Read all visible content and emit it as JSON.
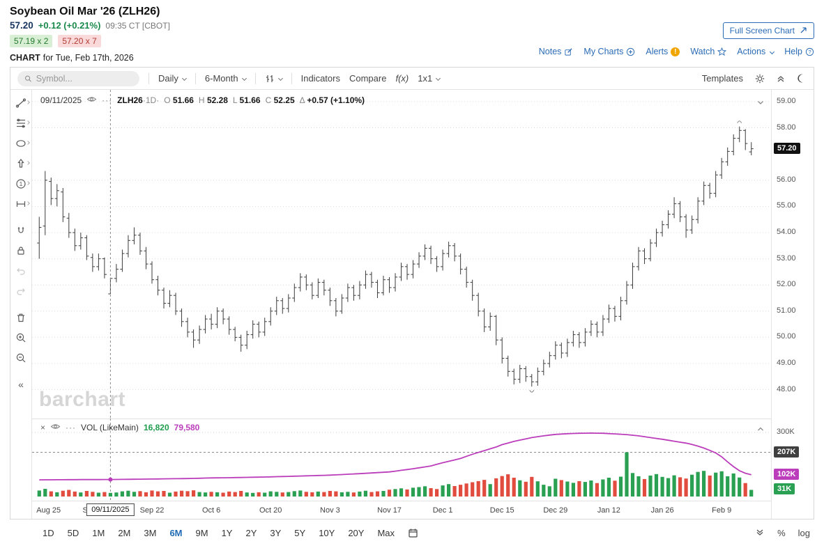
{
  "colors": {
    "accent_blue": "#1f6bb5",
    "price_navy": "#17355e",
    "gain_green": "#1a8a4c",
    "bar": "#3b3b3b",
    "vol_up": "#2aa052",
    "vol_down": "#e24c3f",
    "volume_ma": "#bb3dbb",
    "last_price_bg": "#111111",
    "cross_label_bg": "#3f3f3f",
    "alert_yellow": "#f0a500"
  },
  "header": {
    "title": "Soybean Oil Mar '26 (ZLH26)",
    "last": "57.20",
    "change": "+0.12 (+0.21%)",
    "time": "09:35 CT [CBOT]",
    "bid": "57.19 x 2",
    "ask": "57.20 x 7",
    "chart_word": "CHART",
    "chart_for": "for Tue, Feb 17th, 2026",
    "fullscreen": "Full Screen Chart",
    "links": {
      "notes": "Notes",
      "my_charts": "My Charts",
      "alerts": "Alerts",
      "watch": "Watch",
      "actions": "Actions",
      "help": "Help"
    }
  },
  "toolbar": {
    "symbol_placeholder": "Symbol...",
    "period": "Daily",
    "range": "6-Month",
    "indicators": "Indicators",
    "compare": "Compare",
    "fx": "f(x)",
    "layout": "1x1",
    "templates": "Templates"
  },
  "readout": {
    "date": "09/11/2025",
    "symbol": "ZLH26",
    "interval": "·1D·",
    "labels": {
      "o": "O",
      "h": "H",
      "l": "L",
      "c": "C",
      "delta": "Δ"
    },
    "o": "51.66",
    "h": "52.28",
    "l": "51.66",
    "c": "52.25",
    "delta": "+0.57 (+1.10%)"
  },
  "volume_readout": {
    "label": "VOL (LikeMain)",
    "value": "16,820",
    "ma_value": "79,580"
  },
  "axis_labels": {
    "last_price": "57.20",
    "vol_top": "300K",
    "vol_cross": "207K",
    "vol_ma": "102K",
    "vol_last": "31K"
  },
  "watermark": "barchart",
  "range_bar": {
    "items": [
      "1D",
      "5D",
      "1M",
      "2M",
      "3M",
      "6M",
      "9M",
      "1Y",
      "2Y",
      "3Y",
      "5Y",
      "10Y",
      "20Y",
      "Max"
    ],
    "active": "6M",
    "right": [
      "%",
      "log"
    ]
  },
  "chart_data": {
    "type": "ohlc",
    "title": "Soybean Oil Mar '26 (ZLH26) daily OHLC with volume",
    "price_range": [
      46.9,
      59.45
    ],
    "price_ticks": [
      59,
      58,
      56,
      55,
      54,
      53,
      52,
      51,
      50,
      49,
      48
    ],
    "last_price": 57.2,
    "volume_axis": {
      "tick_k": 300,
      "max_k": 320
    },
    "crosshair": {
      "index": 12,
      "date": "09/11/2025",
      "volume_k": 16.82,
      "volume_ma_k": 79.58,
      "volume_level_k": 207
    },
    "high_marker_index": 118,
    "low_marker_index": 83,
    "x_ticks": [
      {
        "index": 0,
        "label": "Aug 25"
      },
      {
        "index": 9,
        "label": "Sep 8"
      },
      {
        "index": 19,
        "label": "Sep 22"
      },
      {
        "index": 29,
        "label": "Oct 6"
      },
      {
        "index": 39,
        "label": "Oct 20"
      },
      {
        "index": 49,
        "label": "Nov 3"
      },
      {
        "index": 59,
        "label": "Nov 17"
      },
      {
        "index": 68,
        "label": "Dec 1"
      },
      {
        "index": 78,
        "label": "Dec 15"
      },
      {
        "index": 87,
        "label": "Dec 29"
      },
      {
        "index": 96,
        "label": "Jan 12"
      },
      {
        "index": 105,
        "label": "Jan 26"
      },
      {
        "index": 115,
        "label": "Feb 9"
      }
    ],
    "bars": [
      [
        53.6,
        54.6,
        53.0,
        54.2,
        28
      ],
      [
        54.25,
        56.35,
        53.9,
        56.0,
        36
      ],
      [
        55.95,
        56.1,
        55.05,
        55.3,
        24
      ],
      [
        55.3,
        55.85,
        55.0,
        55.6,
        20
      ],
      [
        55.55,
        55.7,
        54.4,
        54.6,
        27
      ],
      [
        54.55,
        54.75,
        53.8,
        54.0,
        31
      ],
      [
        54.0,
        54.15,
        53.3,
        53.5,
        23
      ],
      [
        53.5,
        54.0,
        53.35,
        53.8,
        19
      ],
      [
        53.8,
        53.9,
        52.95,
        53.1,
        26
      ],
      [
        53.05,
        53.2,
        52.5,
        52.7,
        22
      ],
      [
        52.7,
        53.2,
        52.55,
        53.0,
        18
      ],
      [
        53.0,
        53.05,
        52.25,
        52.4,
        21
      ],
      [
        51.66,
        52.28,
        51.66,
        52.25,
        16.82
      ],
      [
        52.25,
        52.8,
        52.1,
        52.6,
        19
      ],
      [
        52.6,
        53.35,
        52.5,
        53.2,
        24
      ],
      [
        53.2,
        53.9,
        53.05,
        53.7,
        27
      ],
      [
        53.7,
        54.2,
        53.55,
        53.9,
        22
      ],
      [
        53.9,
        54.0,
        53.15,
        53.3,
        25
      ],
      [
        53.3,
        53.45,
        52.6,
        52.8,
        20
      ],
      [
        52.8,
        52.9,
        52.05,
        52.2,
        28
      ],
      [
        52.2,
        52.35,
        51.6,
        51.8,
        24
      ],
      [
        51.8,
        51.9,
        51.1,
        51.3,
        26
      ],
      [
        51.3,
        51.8,
        51.15,
        51.6,
        18
      ],
      [
        51.6,
        51.7,
        50.85,
        51.0,
        23
      ],
      [
        51.0,
        51.1,
        50.4,
        50.6,
        27
      ],
      [
        50.6,
        50.75,
        50.0,
        50.2,
        25
      ],
      [
        50.2,
        50.3,
        49.6,
        49.9,
        29
      ],
      [
        49.9,
        50.45,
        49.75,
        50.3,
        21
      ],
      [
        50.3,
        50.85,
        50.15,
        50.7,
        19
      ],
      [
        50.7,
        50.9,
        50.3,
        50.5,
        22
      ],
      [
        50.5,
        51.15,
        50.35,
        51.0,
        20
      ],
      [
        51.0,
        51.1,
        50.5,
        50.7,
        18
      ],
      [
        50.7,
        50.8,
        50.1,
        50.3,
        23
      ],
      [
        50.3,
        50.4,
        49.85,
        50.0,
        21
      ],
      [
        50.0,
        50.1,
        49.45,
        49.7,
        26
      ],
      [
        49.7,
        50.25,
        49.55,
        50.1,
        19
      ],
      [
        50.1,
        50.65,
        49.95,
        50.5,
        17
      ],
      [
        50.5,
        50.6,
        50.0,
        50.2,
        20
      ],
      [
        50.2,
        50.75,
        50.05,
        50.6,
        18
      ],
      [
        50.6,
        51.15,
        50.45,
        51.0,
        24
      ],
      [
        51.0,
        51.55,
        50.85,
        51.4,
        22
      ],
      [
        51.4,
        51.5,
        50.9,
        51.1,
        19
      ],
      [
        51.1,
        51.65,
        50.95,
        51.5,
        21
      ],
      [
        51.5,
        52.05,
        51.35,
        51.9,
        25
      ],
      [
        51.9,
        52.45,
        51.75,
        52.3,
        28
      ],
      [
        52.3,
        52.4,
        51.8,
        52.0,
        22
      ],
      [
        52.0,
        52.1,
        51.45,
        51.6,
        20
      ],
      [
        51.6,
        52.25,
        51.5,
        52.1,
        23
      ],
      [
        52.1,
        52.2,
        51.6,
        51.8,
        21
      ],
      [
        51.8,
        51.9,
        51.2,
        51.4,
        26
      ],
      [
        51.4,
        51.5,
        50.8,
        51.0,
        24
      ],
      [
        51.0,
        51.65,
        50.9,
        51.5,
        20
      ],
      [
        51.5,
        52.05,
        51.35,
        51.9,
        22
      ],
      [
        51.9,
        52.0,
        51.4,
        51.6,
        19
      ],
      [
        51.6,
        52.15,
        51.45,
        52.0,
        23
      ],
      [
        52.0,
        52.55,
        51.85,
        52.4,
        27
      ],
      [
        52.4,
        52.5,
        51.9,
        52.1,
        21
      ],
      [
        52.1,
        52.2,
        51.5,
        51.7,
        24
      ],
      [
        51.7,
        52.35,
        51.6,
        52.2,
        26
      ],
      [
        52.2,
        52.3,
        51.7,
        51.9,
        32
      ],
      [
        51.9,
        52.45,
        51.75,
        52.3,
        35
      ],
      [
        52.3,
        52.85,
        52.15,
        52.7,
        38
      ],
      [
        52.7,
        52.8,
        52.2,
        52.4,
        33
      ],
      [
        52.4,
        52.95,
        52.25,
        52.8,
        41
      ],
      [
        52.8,
        53.25,
        52.65,
        53.1,
        44
      ],
      [
        53.1,
        53.55,
        52.95,
        53.4,
        48
      ],
      [
        53.4,
        53.5,
        52.8,
        53.0,
        39
      ],
      [
        53.0,
        53.1,
        52.5,
        52.7,
        35
      ],
      [
        52.7,
        53.35,
        52.55,
        53.2,
        52
      ],
      [
        53.2,
        53.65,
        53.05,
        53.5,
        58
      ],
      [
        53.5,
        53.6,
        52.9,
        53.1,
        49
      ],
      [
        53.1,
        53.2,
        52.4,
        52.6,
        55
      ],
      [
        52.6,
        52.7,
        51.9,
        52.1,
        61
      ],
      [
        52.1,
        52.2,
        51.4,
        51.6,
        67
      ],
      [
        51.6,
        51.7,
        50.8,
        51.0,
        72
      ],
      [
        51.0,
        51.1,
        50.2,
        50.4,
        78
      ],
      [
        50.4,
        50.95,
        50.25,
        50.8,
        58
      ],
      [
        50.8,
        50.85,
        49.7,
        49.9,
        85
      ],
      [
        49.9,
        50.0,
        49.0,
        49.2,
        96
      ],
      [
        49.2,
        49.3,
        48.5,
        48.7,
        104
      ],
      [
        48.7,
        48.8,
        48.2,
        48.4,
        88
      ],
      [
        48.4,
        48.95,
        48.25,
        48.8,
        76
      ],
      [
        48.8,
        48.9,
        48.3,
        48.5,
        69
      ],
      [
        48.5,
        48.6,
        48.12,
        48.3,
        92
      ],
      [
        48.3,
        48.85,
        48.15,
        48.7,
        71
      ],
      [
        48.7,
        49.15,
        48.55,
        49.0,
        55
      ],
      [
        49.0,
        49.45,
        48.85,
        49.3,
        48
      ],
      [
        49.3,
        49.85,
        49.15,
        49.7,
        83
      ],
      [
        49.7,
        49.8,
        49.2,
        49.4,
        77
      ],
      [
        49.4,
        49.95,
        49.25,
        49.8,
        70
      ],
      [
        49.8,
        50.25,
        49.65,
        50.1,
        64
      ],
      [
        50.1,
        50.2,
        49.6,
        49.8,
        72
      ],
      [
        49.8,
        50.35,
        49.65,
        50.2,
        68
      ],
      [
        50.2,
        50.65,
        50.05,
        50.5,
        75
      ],
      [
        50.5,
        50.6,
        50.0,
        50.2,
        63
      ],
      [
        50.2,
        50.85,
        50.05,
        50.7,
        80
      ],
      [
        50.7,
        51.25,
        50.55,
        51.1,
        88
      ],
      [
        51.1,
        51.2,
        50.6,
        50.8,
        74
      ],
      [
        50.8,
        51.55,
        50.65,
        51.4,
        93
      ],
      [
        51.4,
        52.15,
        51.25,
        52.0,
        207
      ],
      [
        52.0,
        52.85,
        51.85,
        52.7,
        110
      ],
      [
        52.7,
        53.45,
        52.55,
        53.3,
        95
      ],
      [
        53.3,
        53.4,
        52.8,
        53.0,
        82
      ],
      [
        53.0,
        53.75,
        52.9,
        53.6,
        98
      ],
      [
        53.6,
        54.15,
        53.45,
        54.0,
        105
      ],
      [
        54.0,
        54.45,
        53.85,
        54.3,
        92
      ],
      [
        54.3,
        54.85,
        54.15,
        54.7,
        86
      ],
      [
        54.7,
        55.35,
        54.55,
        55.1,
        99
      ],
      [
        55.1,
        55.2,
        54.4,
        54.6,
        90
      ],
      [
        54.6,
        54.7,
        53.8,
        54.1,
        84
      ],
      [
        54.1,
        54.65,
        53.95,
        54.5,
        102
      ],
      [
        54.5,
        55.35,
        54.35,
        55.2,
        115
      ],
      [
        55.2,
        55.95,
        55.05,
        55.8,
        120
      ],
      [
        55.8,
        55.9,
        55.3,
        55.5,
        98
      ],
      [
        55.5,
        56.35,
        55.35,
        56.2,
        112
      ],
      [
        56.2,
        56.85,
        56.05,
        56.7,
        118
      ],
      [
        56.7,
        57.25,
        56.55,
        57.1,
        95
      ],
      [
        57.1,
        57.75,
        56.95,
        57.6,
        108
      ],
      [
        57.6,
        58.05,
        57.45,
        57.9,
        89
      ],
      [
        57.9,
        57.95,
        57.15,
        57.4,
        63
      ],
      [
        57.08,
        57.45,
        56.95,
        57.2,
        31
      ]
    ],
    "volume_ma_points_k": [
      [
        0,
        78
      ],
      [
        6,
        79
      ],
      [
        12,
        79.58
      ],
      [
        19,
        82
      ],
      [
        25,
        84
      ],
      [
        29,
        87
      ],
      [
        34,
        89
      ],
      [
        39,
        92
      ],
      [
        44,
        96
      ],
      [
        49,
        100
      ],
      [
        54,
        107
      ],
      [
        59,
        115
      ],
      [
        63,
        130
      ],
      [
        66,
        143
      ],
      [
        68,
        158
      ],
      [
        71,
        178
      ],
      [
        73,
        198
      ],
      [
        75,
        215
      ],
      [
        77,
        232
      ],
      [
        78,
        243
      ],
      [
        80,
        258
      ],
      [
        83,
        276
      ],
      [
        85,
        284
      ],
      [
        87,
        291
      ],
      [
        89,
        294
      ],
      [
        91,
        296
      ],
      [
        93,
        297
      ],
      [
        95,
        296
      ],
      [
        97,
        293
      ],
      [
        99,
        290
      ],
      [
        101,
        284
      ],
      [
        103,
        276
      ],
      [
        105,
        268
      ],
      [
        107,
        259
      ],
      [
        109,
        250
      ],
      [
        110,
        244
      ],
      [
        111,
        236
      ],
      [
        112,
        227
      ],
      [
        113,
        216
      ],
      [
        114,
        204
      ],
      [
        115,
        186
      ],
      [
        116,
        162
      ],
      [
        117,
        140
      ],
      [
        118,
        121
      ],
      [
        119,
        109
      ],
      [
        120,
        102
      ]
    ]
  }
}
